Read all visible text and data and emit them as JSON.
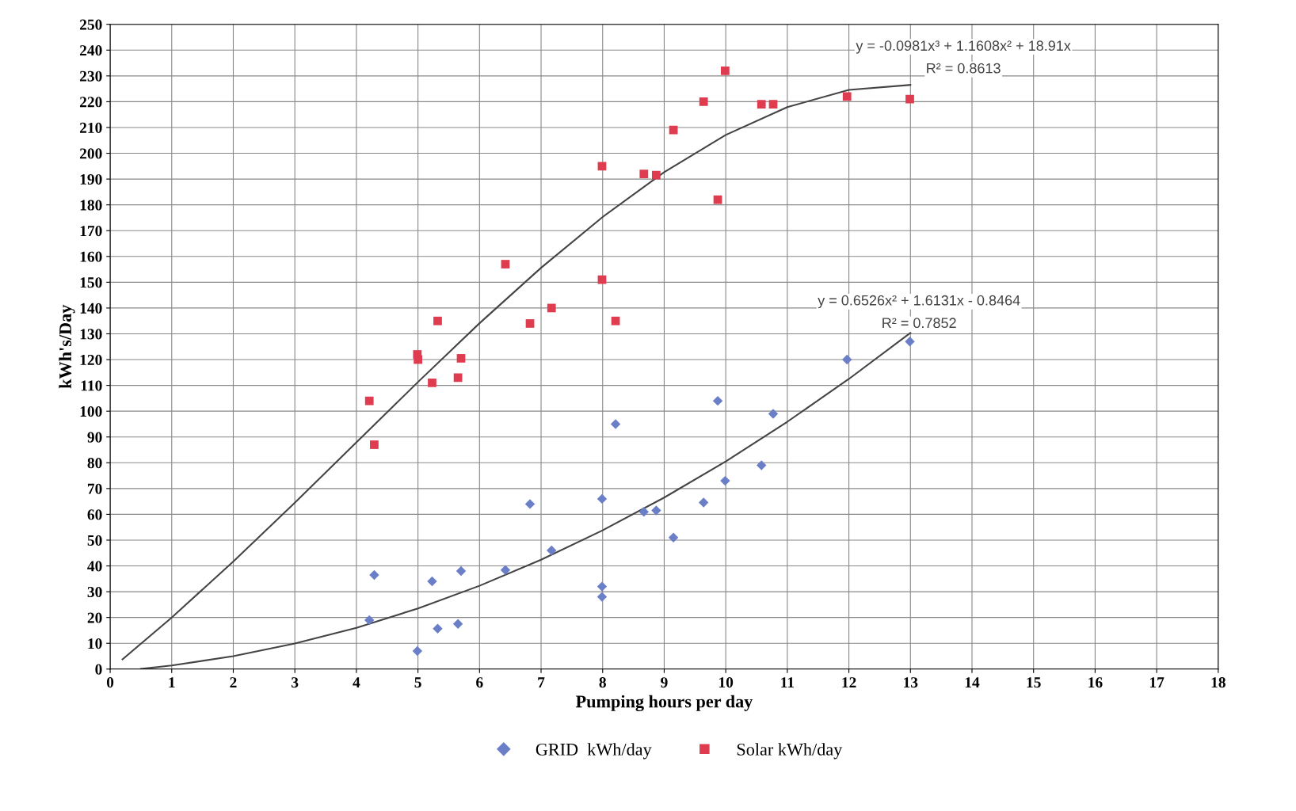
{
  "chart_data": {
    "type": "scatter",
    "xlabel": "Pumping hours per day",
    "ylabel": "kWh's/Day",
    "xlim": [
      0,
      18
    ],
    "xticks": [
      0,
      1,
      2,
      3,
      4,
      5,
      6,
      7,
      8,
      9,
      10,
      11,
      12,
      13,
      14,
      15,
      16,
      17,
      18
    ],
    "ylim": [
      0,
      250
    ],
    "yticks": [
      0,
      10,
      20,
      30,
      40,
      50,
      60,
      70,
      80,
      90,
      100,
      110,
      120,
      130,
      140,
      150,
      160,
      170,
      180,
      190,
      200,
      210,
      220,
      230,
      240,
      250
    ],
    "grid": true,
    "legend": "bottom",
    "series": [
      {
        "name": "GRID  kWh/day",
        "color": "#6b7fc8",
        "marker": "diamond",
        "x": [
          4.21,
          4.29,
          4.99,
          5.23,
          5.32,
          5.65,
          5.7,
          6.42,
          6.82,
          7.17,
          7.99,
          7.99,
          7.99,
          8.21,
          8.67,
          8.87,
          9.15,
          9.64,
          9.87,
          9.99,
          10.58,
          10.77,
          11.97,
          12.99
        ],
        "values": [
          19,
          36.5,
          7,
          34,
          15.7,
          17.5,
          38,
          38.4,
          64,
          46,
          66,
          32,
          28,
          95,
          61,
          61.5,
          51,
          64.6,
          104,
          73,
          79,
          99,
          120,
          127
        ]
      },
      {
        "name": "Solar kWh/day",
        "color": "#e03c50",
        "marker": "square",
        "x": [
          4.21,
          4.29,
          4.99,
          5.0,
          5.23,
          5.32,
          5.65,
          5.7,
          6.42,
          6.82,
          7.17,
          7.99,
          7.99,
          8.21,
          8.67,
          8.87,
          9.15,
          9.64,
          9.87,
          9.99,
          10.58,
          10.77,
          11.97,
          12.99
        ],
        "values": [
          104,
          87,
          122,
          120,
          111,
          135,
          113,
          120.5,
          157,
          134,
          140,
          195,
          151,
          135,
          192,
          191.5,
          209,
          220,
          182,
          232,
          219,
          219,
          222,
          221
        ]
      },
      {
        "type": "line",
        "color": "#444444",
        "marker": "none",
        "x": [
          0.2,
          1,
          2,
          3,
          4,
          5,
          6,
          7,
          8,
          9,
          10,
          11,
          12,
          13
        ],
        "values": [
          3.8,
          20,
          41.7,
          64.5,
          87.9,
          111.3,
          134.1,
          155.6,
          175.3,
          192.7,
          207.1,
          217.9,
          224.6,
          226.5
        ]
      },
      {
        "type": "line",
        "color": "#444444",
        "marker": "none",
        "x": [
          0.5,
          1,
          2,
          3,
          4,
          5,
          6,
          7,
          8,
          9,
          10,
          11,
          12,
          13
        ],
        "values": [
          0.1,
          1.4,
          5,
          9.9,
          16,
          23.5,
          32.3,
          42.4,
          53.8,
          66.5,
          80.5,
          95.9,
          112.5,
          130.4
        ]
      }
    ],
    "annotations": [
      "y = -0.0981x³ + 1.1608x² + 18.91x",
      "R² = 0.8613",
      "y = 0.6526x² + 1.6131x - 0.8464",
      "R² = 0.7852"
    ]
  }
}
